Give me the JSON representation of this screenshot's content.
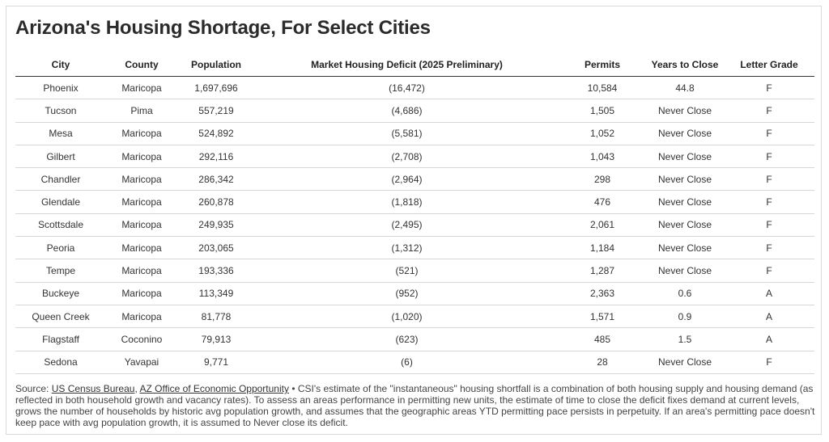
{
  "title": "Arizona's Housing Shortage, For Select Cities",
  "columns": [
    "City",
    "County",
    "Population",
    "Market Housing Deficit (2025 Preliminary)",
    "Permits",
    "Years to Close",
    "Letter Grade"
  ],
  "rows": [
    [
      "Phoenix",
      "Maricopa",
      "1,697,696",
      "(16,472)",
      "10,584",
      "44.8",
      "F"
    ],
    [
      "Tucson",
      "Pima",
      "557,219",
      "(4,686)",
      "1,505",
      "Never Close",
      "F"
    ],
    [
      "Mesa",
      "Maricopa",
      "524,892",
      "(5,581)",
      "1,052",
      "Never Close",
      "F"
    ],
    [
      "Gilbert",
      "Maricopa",
      "292,116",
      "(2,708)",
      "1,043",
      "Never Close",
      "F"
    ],
    [
      "Chandler",
      "Maricopa",
      "286,342",
      "(2,964)",
      "298",
      "Never Close",
      "F"
    ],
    [
      "Glendale",
      "Maricopa",
      "260,878",
      "(1,818)",
      "476",
      "Never Close",
      "F"
    ],
    [
      "Scottsdale",
      "Maricopa",
      "249,935",
      "(2,495)",
      "2,061",
      "Never Close",
      "F"
    ],
    [
      "Peoria",
      "Maricopa",
      "203,065",
      "(1,312)",
      "1,184",
      "Never Close",
      "F"
    ],
    [
      "Tempe",
      "Maricopa",
      "193,336",
      "(521)",
      "1,287",
      "Never Close",
      "F"
    ],
    [
      "Buckeye",
      "Maricopa",
      "113,349",
      "(952)",
      "2,363",
      "0.6",
      "A"
    ],
    [
      "Queen Creek",
      "Maricopa",
      "81,778",
      "(1,020)",
      "1,571",
      "0.9",
      "A"
    ],
    [
      "Flagstaff",
      "Coconino",
      "79,913",
      "(623)",
      "485",
      "1.5",
      "A"
    ],
    [
      "Sedona",
      "Yavapai",
      "9,771",
      "(6)",
      "28",
      "Never Close",
      "F"
    ]
  ],
  "source": {
    "prefix": "Source: ",
    "link1": "US Census Bureau",
    "sep": ", ",
    "link2": "AZ Office of Economic Opportunity",
    "text": " • CSI's estimate of the \"instantaneous\" housing shortfall is a combination of both housing supply and housing demand (as reflected in both household growth and vacancy rates). To assess an areas performance in permitting new units, the estimate of time to close the deficit fixes demand at current levels, grows the number of households by historic avg population growth, and assumes that the geographic areas YTD permitting pace persists in perpetuity. If an area's permitting pace doesn't keep pace with avg population growth, it is assumed to Never close its deficit."
  }
}
